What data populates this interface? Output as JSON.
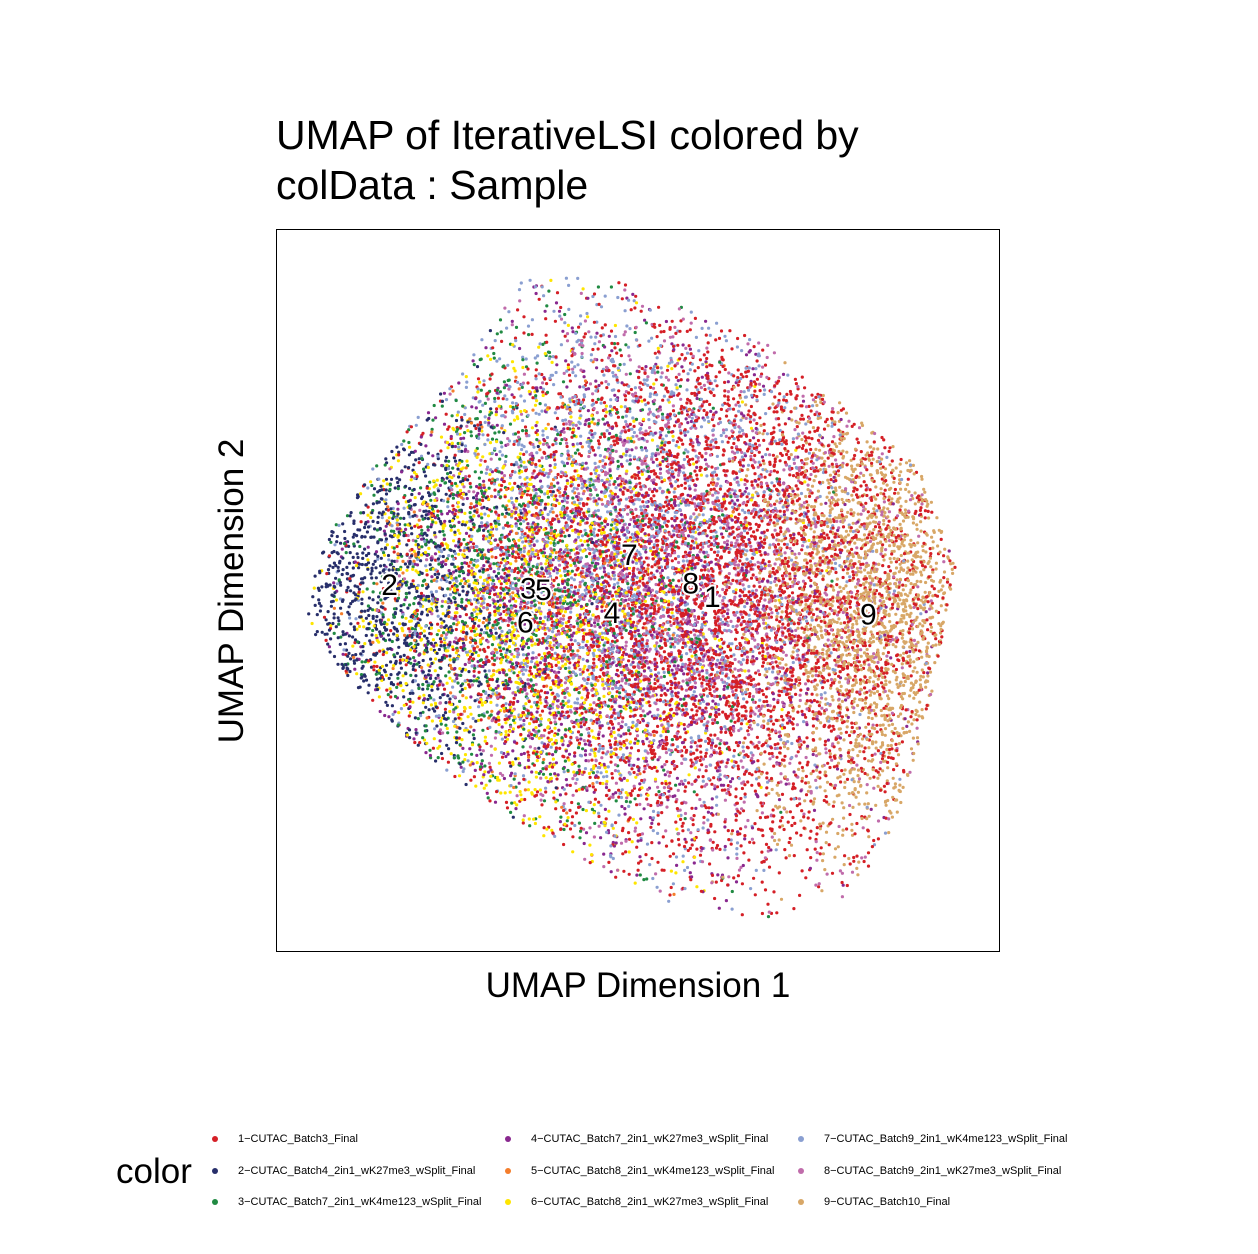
{
  "chart_data": {
    "type": "scatter",
    "title": "UMAP of IterativeLSI  colored by\ncolData :  Sample",
    "xlabel": "UMAP Dimension 1",
    "ylabel": "UMAP Dimension 2",
    "xlim": [
      0,
      100
    ],
    "ylim": [
      0,
      100
    ],
    "grid": false,
    "legend_title": "color",
    "legend_position": "bottom",
    "series": [
      {
        "name": "1−CUTAC_Batch3_Final",
        "label": "1",
        "color": "#D51F26",
        "center": [
          60,
          49
        ],
        "spread": [
          20,
          20
        ],
        "weight": 0.3
      },
      {
        "name": "2−CUTAC_Batch4_2in1_wK27me3_wSplit_Final",
        "label": "2",
        "color": "#272E6A",
        "center": [
          15,
          50
        ],
        "spread": [
          9,
          13
        ],
        "weight": 0.06
      },
      {
        "name": "3−CUTAC_Batch7_2in1_wK4me123_wSplit_Final",
        "label": "3",
        "color": "#208A42",
        "center": [
          34,
          50
        ],
        "spread": [
          14,
          18
        ],
        "weight": 0.07
      },
      {
        "name": "4−CUTAC_Batch7_2in1_wK27me3_wSplit_Final",
        "label": "4",
        "color": "#89288F",
        "center": [
          46,
          47
        ],
        "spread": [
          17,
          19
        ],
        "weight": 0.1
      },
      {
        "name": "5−CUTAC_Batch8_2in1_wK4me123_wSplit_Final",
        "label": "5",
        "color": "#F47D2B",
        "center": [
          36,
          50
        ],
        "spread": [
          12,
          14
        ],
        "weight": 0.02
      },
      {
        "name": "6−CUTAC_Batch8_2in1_wK27me3_wSplit_Final",
        "label": "6",
        "color": "#FEE500",
        "center": [
          34,
          46
        ],
        "spread": [
          14,
          17
        ],
        "weight": 0.08
      },
      {
        "name": "7−CUTAC_Batch9_2in1_wK4me123_wSplit_Final",
        "label": "7",
        "color": "#8A9FD1",
        "center": [
          48,
          54
        ],
        "spread": [
          16,
          20
        ],
        "weight": 0.13
      },
      {
        "name": "8−CUTAC_Batch9_2in1_wK27me3_wSplit_Final",
        "label": "8",
        "color": "#C06CAB",
        "center": [
          57,
          50
        ],
        "spread": [
          17,
          19
        ],
        "weight": 0.12
      },
      {
        "name": "9−CUTAC_Batch10_Final",
        "label": "9",
        "color": "#D8A767",
        "center": [
          82,
          47
        ],
        "spread": [
          8,
          17
        ],
        "weight": 0.12
      }
    ],
    "cluster_labels": [
      {
        "text": "1",
        "x": 60.3,
        "y": 48.8
      },
      {
        "text": "2",
        "x": 15.6,
        "y": 50.5
      },
      {
        "text": "3",
        "x": 34.8,
        "y": 50.0
      },
      {
        "text": "4",
        "x": 46.4,
        "y": 46.6
      },
      {
        "text": "5",
        "x": 36.9,
        "y": 49.8
      },
      {
        "text": "6",
        "x": 34.4,
        "y": 45.3
      },
      {
        "text": "7",
        "x": 48.8,
        "y": 54.6
      },
      {
        "text": "8",
        "x": 57.3,
        "y": 50.7
      },
      {
        "text": "9",
        "x": 81.9,
        "y": 46.4
      }
    ],
    "point_count": 16000
  }
}
